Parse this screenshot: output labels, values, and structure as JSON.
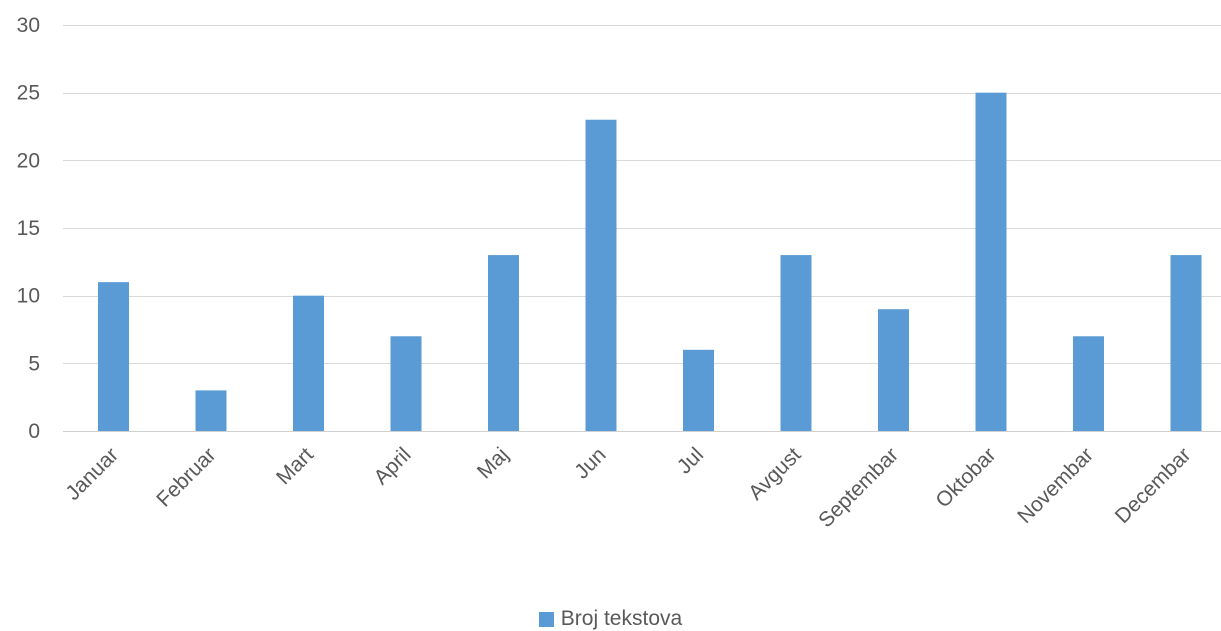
{
  "chart_data": {
    "type": "bar",
    "categories": [
      "Januar",
      "Februar",
      "Mart",
      "April",
      "Maj",
      "Jun",
      "Jul",
      "Avgust",
      "Septembar",
      "Oktobar",
      "Novembar",
      "Decembar"
    ],
    "series": [
      {
        "name": "Broj tekstova",
        "values": [
          11,
          3,
          10,
          7,
          13,
          23,
          6,
          13,
          9,
          25,
          7,
          13
        ],
        "color": "#5B9BD5"
      }
    ],
    "title": "",
    "xlabel": "",
    "ylabel": "",
    "ylim": [
      0,
      30
    ],
    "yticks": [
      0,
      5,
      10,
      15,
      20,
      25,
      30
    ],
    "grid": true,
    "legend_position": "bottom"
  }
}
